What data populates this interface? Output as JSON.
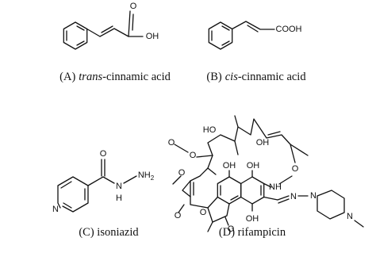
{
  "panels": [
    {
      "caption": {
        "label": "(A)",
        "italic": "trans",
        "rest": "-cinnamic acid"
      },
      "atoms": [
        "O",
        "OH"
      ]
    },
    {
      "caption": {
        "label": "(B)",
        "italic": "cis",
        "rest": "-cinnamic acid"
      },
      "atoms": [
        "COOH"
      ]
    },
    {
      "caption": {
        "label": "(C) isoniazid"
      },
      "atoms": [
        "O",
        "N",
        "H",
        "NH",
        "2",
        "N"
      ]
    },
    {
      "caption": {
        "label": "(D) rifampicin"
      },
      "atoms": [
        "HO",
        "OH",
        "O",
        "O",
        "O",
        "OH",
        "OH",
        "O",
        "NH",
        "N",
        "N",
        "N",
        "O",
        "O",
        "O",
        "OH"
      ]
    }
  ]
}
